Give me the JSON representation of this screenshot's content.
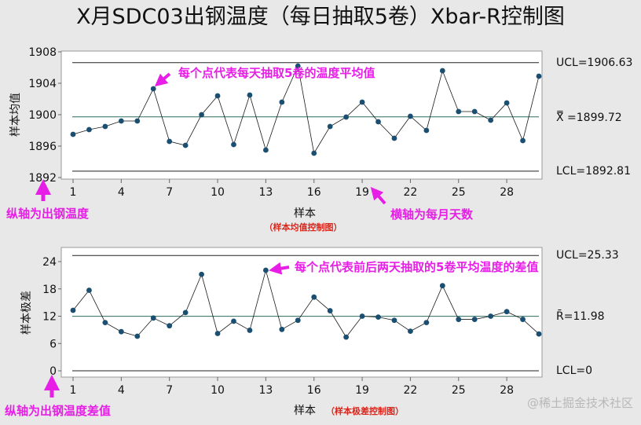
{
  "title": "X月SDC03出钢温度（每日抽取5卷）Xbar-R控制图",
  "colors": {
    "background": "#e8e8e8",
    "plot_bg": "#ffffff",
    "data_line": "#1a1a1a",
    "marker": "#1b4f72",
    "center_line": "#2e6b5e",
    "limit_line": "#222222",
    "annotation": "#e61ee6",
    "subtitle": "#d9261c"
  },
  "chart_data": [
    {
      "type": "line",
      "name": "xbar",
      "title": "样本均值控制图",
      "subtitle": "（样本均值控制图）",
      "xlabel": "样本",
      "ylabel": "样本均值",
      "x": [
        1,
        2,
        3,
        4,
        5,
        6,
        7,
        8,
        9,
        10,
        11,
        12,
        13,
        14,
        15,
        16,
        17,
        18,
        19,
        20,
        21,
        22,
        23,
        24,
        25,
        26,
        27,
        28,
        29,
        30
      ],
      "values": [
        1897.5,
        1898.1,
        1898.5,
        1899.2,
        1899.2,
        1903.3,
        1896.6,
        1896.1,
        1900.0,
        1902.4,
        1896.2,
        1902.5,
        1895.5,
        1901.6,
        1906.2,
        1895.1,
        1898.5,
        1899.7,
        1901.6,
        1899.1,
        1897.0,
        1899.8,
        1898.0,
        1905.6,
        1900.4,
        1900.4,
        1899.3,
        1901.5,
        1896.7,
        1904.9
      ],
      "ylim": [
        1892,
        1908
      ],
      "yticks": [
        1892,
        1896,
        1900,
        1904,
        1908
      ],
      "xticks": [
        1,
        4,
        7,
        10,
        13,
        16,
        19,
        22,
        25,
        28
      ],
      "ucl": 1906.63,
      "center": 1899.72,
      "lcl": 1892.81,
      "ucl_label": "UCL=1906.63",
      "center_label": "X̿ =1899.72",
      "lcl_label": "LCL=1892.81",
      "grid": false
    },
    {
      "type": "line",
      "name": "range",
      "title": "样本极差控制图",
      "subtitle": "（样本极差控制图）",
      "xlabel": "样本",
      "ylabel": "样本极差",
      "x": [
        1,
        2,
        3,
        4,
        5,
        6,
        7,
        8,
        9,
        10,
        11,
        12,
        13,
        14,
        15,
        16,
        17,
        18,
        19,
        20,
        21,
        22,
        23,
        24,
        25,
        26,
        27,
        28,
        29,
        30
      ],
      "values": [
        13.3,
        17.7,
        10.6,
        8.6,
        7.6,
        11.6,
        9.9,
        12.8,
        21.2,
        8.2,
        10.9,
        8.9,
        22.1,
        9.1,
        11.1,
        16.2,
        13.2,
        7.4,
        12.0,
        11.8,
        11.1,
        8.7,
        10.6,
        18.7,
        11.3,
        11.3,
        12.0,
        13.0,
        11.3,
        8.1
      ],
      "ylim": [
        -1.5,
        26.5
      ],
      "yticks": [
        0,
        6,
        12,
        18,
        24
      ],
      "xticks": [
        1,
        4,
        7,
        10,
        13,
        16,
        19,
        22,
        25,
        28
      ],
      "ucl": 25.33,
      "center": 11.98,
      "lcl": 0,
      "ucl_label": "UCL=25.33",
      "center_label": "R̄=11.98",
      "lcl_label": "LCL=0",
      "grid": false
    }
  ],
  "annotations": {
    "top_point": "每个点代表每天抽取5卷的温度平均值",
    "top_yaxis": "纵轴为出钢温度",
    "top_xaxis": "横轴为每月天数",
    "bottom_point": "每个点代表前后两天抽取的5卷平均温度的差值",
    "bottom_yaxis": "纵轴为出钢温度差值"
  },
  "watermark": "@稀土掘金技术社区"
}
